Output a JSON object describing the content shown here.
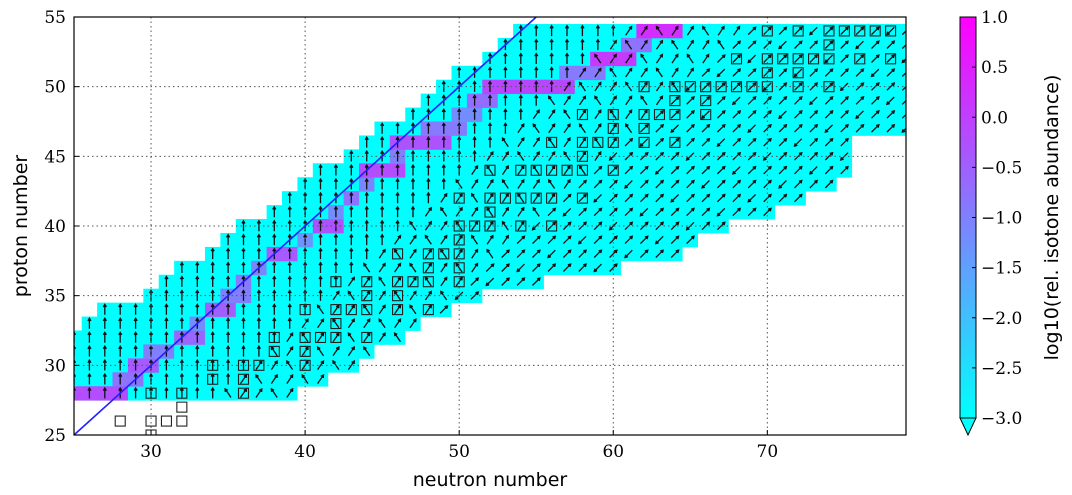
{
  "chart_data": {
    "type": "heatmap",
    "title": "",
    "xlabel": "neutron number",
    "ylabel": "proton number",
    "xlim": [
      25,
      79
    ],
    "ylim": [
      25,
      55
    ],
    "xticks": [
      "30",
      "40",
      "50",
      "60",
      "70"
    ],
    "yticks": [
      "25",
      "30",
      "35",
      "40",
      "45",
      "50",
      "55"
    ],
    "grid": true,
    "diagonal_line": {
      "from": [
        25,
        25
      ],
      "to": [
        55,
        55
      ],
      "color": "#1f1fff"
    },
    "colorbar": {
      "label": "log10(rel. isotone abundance)",
      "min": -3.0,
      "max": 1.0,
      "ticks": [
        "1.0",
        "0.5",
        "0.0",
        "−0.5",
        "−1.0",
        "−1.5",
        "−2.0",
        "−2.5",
        "−3.0"
      ],
      "low_color": "#00ffff",
      "high_color": "#ff00ff",
      "extend": "min"
    },
    "network_rows": [
      {
        "z": 28,
        "n": [
          25,
          39
        ]
      },
      {
        "z": 29,
        "n": [
          25,
          41
        ]
      },
      {
        "z": 30,
        "n": [
          25,
          43
        ]
      },
      {
        "z": 31,
        "n": [
          25,
          44
        ]
      },
      {
        "z": 32,
        "n": [
          25,
          46
        ]
      },
      {
        "z": 33,
        "n": [
          26,
          47
        ]
      },
      {
        "z": 34,
        "n": [
          27,
          49
        ]
      },
      {
        "z": 35,
        "n": [
          30,
          51
        ]
      },
      {
        "z": 36,
        "n": [
          31,
          55
        ]
      },
      {
        "z": 37,
        "n": [
          32,
          60
        ]
      },
      {
        "z": 38,
        "n": [
          34,
          64
        ]
      },
      {
        "z": 39,
        "n": [
          35,
          65
        ]
      },
      {
        "z": 40,
        "n": [
          36,
          67
        ]
      },
      {
        "z": 41,
        "n": [
          38,
          70
        ]
      },
      {
        "z": 42,
        "n": [
          39,
          72
        ]
      },
      {
        "z": 43,
        "n": [
          40,
          74
        ]
      },
      {
        "z": 44,
        "n": [
          41,
          75
        ]
      },
      {
        "z": 45,
        "n": [
          43,
          75
        ]
      },
      {
        "z": 46,
        "n": [
          44,
          75
        ]
      },
      {
        "z": 47,
        "n": [
          45,
          79
        ]
      },
      {
        "z": 48,
        "n": [
          47,
          79
        ]
      },
      {
        "z": 49,
        "n": [
          48,
          79
        ]
      },
      {
        "z": 50,
        "n": [
          49,
          79
        ]
      },
      {
        "z": 51,
        "n": [
          50,
          79
        ]
      },
      {
        "z": 52,
        "n": [
          52,
          79
        ]
      },
      {
        "z": 53,
        "n": [
          53,
          79
        ]
      },
      {
        "z": 54,
        "n": [
          54,
          79
        ]
      }
    ],
    "abundance_path": [
      {
        "z": 28,
        "n": [
          25,
          28
        ],
        "value": -0.2
      },
      {
        "z": 29,
        "n": [
          28,
          29
        ],
        "value": -0.8
      },
      {
        "z": 30,
        "n": [
          29,
          30
        ],
        "value": -0.4
      },
      {
        "z": 31,
        "n": [
          30,
          31
        ],
        "value": -1.0
      },
      {
        "z": 32,
        "n": [
          32,
          33
        ],
        "value": -0.6
      },
      {
        "z": 33,
        "n": [
          33,
          33
        ],
        "value": -1.2
      },
      {
        "z": 34,
        "n": [
          34,
          35
        ],
        "value": -0.5
      },
      {
        "z": 35,
        "n": [
          35,
          36
        ],
        "value": -1.0
      },
      {
        "z": 36,
        "n": [
          36,
          36
        ],
        "value": -0.9
      },
      {
        "z": 37,
        "n": [
          37,
          37
        ],
        "value": -1.1
      },
      {
        "z": 38,
        "n": [
          38,
          39
        ],
        "value": -0.4
      },
      {
        "z": 39,
        "n": [
          40,
          40
        ],
        "value": -1.3
      },
      {
        "z": 40,
        "n": [
          41,
          42
        ],
        "value": -0.3
      },
      {
        "z": 41,
        "n": [
          42,
          42
        ],
        "value": -1.2
      },
      {
        "z": 42,
        "n": [
          43,
          43
        ],
        "value": -0.8
      },
      {
        "z": 43,
        "n": [
          44,
          44
        ],
        "value": -1.1
      },
      {
        "z": 44,
        "n": [
          44,
          46
        ],
        "value": -0.2
      },
      {
        "z": 45,
        "n": [
          46,
          46
        ],
        "value": -1.0
      },
      {
        "z": 46,
        "n": [
          46,
          49
        ],
        "value": -0.3
      },
      {
        "z": 47,
        "n": [
          48,
          50
        ],
        "value": -0.9
      },
      {
        "z": 48,
        "n": [
          50,
          51
        ],
        "value": -1.2
      },
      {
        "z": 49,
        "n": [
          51,
          52
        ],
        "value": -0.7
      },
      {
        "z": 50,
        "n": [
          52,
          57
        ],
        "value": -0.1
      },
      {
        "z": 51,
        "n": [
          57,
          59
        ],
        "value": -0.9
      },
      {
        "z": 52,
        "n": [
          59,
          61
        ],
        "value": 0.1
      },
      {
        "z": 53,
        "n": [
          61,
          62
        ],
        "value": -0.8
      },
      {
        "z": 54,
        "n": [
          62,
          64
        ],
        "value": 0.3
      }
    ],
    "stable_isotopes": [
      {
        "z": 26,
        "n": 28
      },
      {
        "z": 26,
        "n": 30
      },
      {
        "z": 26,
        "n": 31
      },
      {
        "z": 26,
        "n": 32
      },
      {
        "z": 27,
        "n": 32
      },
      {
        "z": 25,
        "n": 30
      },
      {
        "z": 28,
        "n": 30
      },
      {
        "z": 28,
        "n": 32
      },
      {
        "z": 28,
        "n": 36
      },
      {
        "z": 29,
        "n": 34
      },
      {
        "z": 29,
        "n": 36
      },
      {
        "z": 30,
        "n": 34
      },
      {
        "z": 30,
        "n": 36
      },
      {
        "z": 30,
        "n": 37
      },
      {
        "z": 30,
        "n": 40
      },
      {
        "z": 31,
        "n": 38
      },
      {
        "z": 31,
        "n": 40
      },
      {
        "z": 32,
        "n": 38
      },
      {
        "z": 32,
        "n": 40
      },
      {
        "z": 32,
        "n": 41
      },
      {
        "z": 32,
        "n": 42
      },
      {
        "z": 32,
        "n": 44
      },
      {
        "z": 33,
        "n": 42
      },
      {
        "z": 34,
        "n": 40
      },
      {
        "z": 34,
        "n": 42
      },
      {
        "z": 34,
        "n": 43
      },
      {
        "z": 34,
        "n": 44
      },
      {
        "z": 34,
        "n": 46
      },
      {
        "z": 34,
        "n": 48
      },
      {
        "z": 35,
        "n": 44
      },
      {
        "z": 35,
        "n": 46
      },
      {
        "z": 36,
        "n": 42
      },
      {
        "z": 36,
        "n": 44
      },
      {
        "z": 36,
        "n": 46
      },
      {
        "z": 36,
        "n": 47
      },
      {
        "z": 36,
        "n": 48
      },
      {
        "z": 36,
        "n": 50
      },
      {
        "z": 37,
        "n": 48
      },
      {
        "z": 37,
        "n": 50
      },
      {
        "z": 38,
        "n": 46
      },
      {
        "z": 38,
        "n": 48
      },
      {
        "z": 38,
        "n": 49
      },
      {
        "z": 38,
        "n": 50
      },
      {
        "z": 39,
        "n": 50
      },
      {
        "z": 40,
        "n": 50
      },
      {
        "z": 40,
        "n": 51
      },
      {
        "z": 40,
        "n": 52
      },
      {
        "z": 40,
        "n": 54
      },
      {
        "z": 40,
        "n": 56
      },
      {
        "z": 41,
        "n": 52
      },
      {
        "z": 42,
        "n": 50
      },
      {
        "z": 42,
        "n": 52
      },
      {
        "z": 42,
        "n": 53
      },
      {
        "z": 42,
        "n": 54
      },
      {
        "z": 42,
        "n": 55
      },
      {
        "z": 42,
        "n": 56
      },
      {
        "z": 42,
        "n": 58
      },
      {
        "z": 44,
        "n": 52
      },
      {
        "z": 44,
        "n": 54
      },
      {
        "z": 44,
        "n": 55
      },
      {
        "z": 44,
        "n": 56
      },
      {
        "z": 44,
        "n": 57
      },
      {
        "z": 44,
        "n": 58
      },
      {
        "z": 44,
        "n": 60
      },
      {
        "z": 45,
        "n": 58
      },
      {
        "z": 46,
        "n": 56
      },
      {
        "z": 46,
        "n": 58
      },
      {
        "z": 46,
        "n": 59
      },
      {
        "z": 46,
        "n": 60
      },
      {
        "z": 46,
        "n": 62
      },
      {
        "z": 46,
        "n": 64
      },
      {
        "z": 47,
        "n": 60
      },
      {
        "z": 47,
        "n": 62
      },
      {
        "z": 48,
        "n": 58
      },
      {
        "z": 48,
        "n": 60
      },
      {
        "z": 48,
        "n": 62
      },
      {
        "z": 48,
        "n": 63
      },
      {
        "z": 48,
        "n": 64
      },
      {
        "z": 48,
        "n": 66
      },
      {
        "z": 49,
        "n": 64
      },
      {
        "z": 49,
        "n": 66
      },
      {
        "z": 50,
        "n": 62
      },
      {
        "z": 50,
        "n": 64
      },
      {
        "z": 50,
        "n": 65
      },
      {
        "z": 50,
        "n": 66
      },
      {
        "z": 50,
        "n": 67
      },
      {
        "z": 50,
        "n": 68
      },
      {
        "z": 50,
        "n": 69
      },
      {
        "z": 50,
        "n": 70
      },
      {
        "z": 50,
        "n": 72
      },
      {
        "z": 50,
        "n": 74
      },
      {
        "z": 51,
        "n": 70
      },
      {
        "z": 51,
        "n": 72
      },
      {
        "z": 52,
        "n": 68
      },
      {
        "z": 52,
        "n": 70
      },
      {
        "z": 52,
        "n": 71
      },
      {
        "z": 52,
        "n": 72
      },
      {
        "z": 52,
        "n": 73
      },
      {
        "z": 52,
        "n": 74
      },
      {
        "z": 52,
        "n": 76
      },
      {
        "z": 52,
        "n": 78
      },
      {
        "z": 53,
        "n": 74
      },
      {
        "z": 54,
        "n": 70
      },
      {
        "z": 54,
        "n": 72
      },
      {
        "z": 54,
        "n": 74
      },
      {
        "z": 54,
        "n": 75
      },
      {
        "z": 54,
        "n": 76
      },
      {
        "z": 54,
        "n": 77
      },
      {
        "z": 54,
        "n": 78
      }
    ]
  }
}
